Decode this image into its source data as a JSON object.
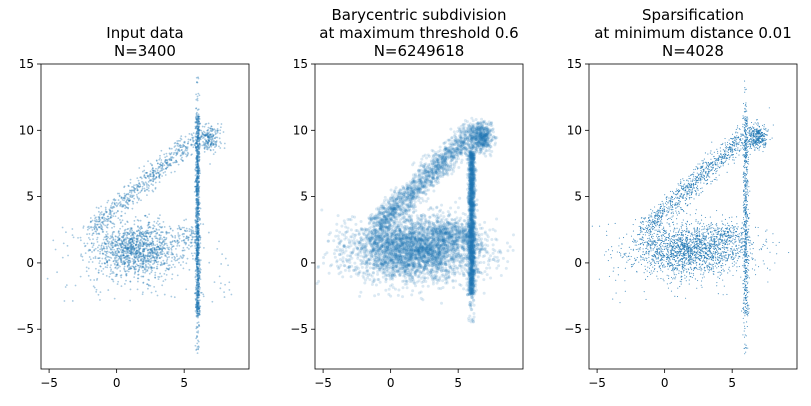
{
  "chart_data": [
    {
      "type": "scatter",
      "title": [
        "Input data",
        "N=3400"
      ],
      "xlim": [
        -5.6,
        9.8
      ],
      "ylim": [
        -8,
        15
      ],
      "xticks": [
        -5,
        0,
        5
      ],
      "yticks": [
        -5,
        0,
        5,
        10,
        15
      ],
      "grid": false,
      "color": "#1f77b4",
      "marker": "small dots, semi-transparent",
      "clusters": [
        {
          "shape": "ellipse",
          "center": [
            1.5,
            1.0
          ],
          "spread": [
            1.6,
            1.0
          ],
          "points": 1300
        },
        {
          "shape": "band",
          "from": [
            -2.0,
            2.4
          ],
          "to": [
            5.8,
            9.4
          ],
          "width": 0.45,
          "points": 600
        },
        {
          "shape": "band",
          "from": [
            4.6,
            2.2
          ],
          "to": [
            6.0,
            2.0
          ],
          "width": 0.35,
          "points": 80
        },
        {
          "shape": "vertical-line",
          "x": 6.0,
          "y_range": [
            -7.0,
            14.0
          ],
          "width": 0.08,
          "points": 1100
        },
        {
          "shape": "ellipse",
          "center": [
            6.9,
            9.4
          ],
          "spread": [
            0.4,
            0.5
          ],
          "points": 200
        },
        {
          "shape": "uniform-noise",
          "x_range": [
            -5.2,
            8.8
          ],
          "y_range": [
            -3,
            3
          ],
          "points": 120
        }
      ]
    },
    {
      "type": "scatter",
      "title": [
        "Barycentric subdivision",
        "at maximum threshold 0.6",
        "N=6249618"
      ],
      "xlim": [
        -5.6,
        9.8
      ],
      "ylim": [
        -8,
        15
      ],
      "xticks": [
        -5,
        0,
        5
      ],
      "yticks": [
        -5,
        0,
        5,
        10,
        15
      ],
      "grid": false,
      "color": "#1f77b4",
      "marker": "dense filled region",
      "clusters": [
        {
          "shape": "ellipse",
          "center": [
            1.8,
            1.0
          ],
          "spread": [
            2.5,
            1.2
          ],
          "points": 3500
        },
        {
          "shape": "band",
          "from": [
            -1.2,
            2.6
          ],
          "to": [
            5.8,
            9.6
          ],
          "width": 0.55,
          "points": 1400
        },
        {
          "shape": "band",
          "from": [
            3.5,
            2.4
          ],
          "to": [
            6.0,
            2.2
          ],
          "width": 0.4,
          "points": 250
        },
        {
          "shape": "vertical-line",
          "x": 6.0,
          "y_range": [
            -4.5,
            10.5
          ],
          "width": 0.12,
          "points": 1800
        },
        {
          "shape": "ellipse",
          "center": [
            6.7,
            9.5
          ],
          "spread": [
            0.45,
            0.55
          ],
          "points": 500
        }
      ]
    },
    {
      "type": "scatter",
      "title": [
        "Sparsification",
        "at minimum distance 0.01",
        "N=4028"
      ],
      "xlim": [
        -5.6,
        9.8
      ],
      "ylim": [
        -8,
        15
      ],
      "xticks": [
        -5,
        0,
        5
      ],
      "yticks": [
        -5,
        0,
        5,
        10,
        15
      ],
      "grid": false,
      "color": "#1f77b4",
      "marker": "tiny dots",
      "clusters": [
        {
          "shape": "ellipse",
          "center": [
            1.8,
            1.0
          ],
          "spread": [
            2.2,
            1.0
          ],
          "points": 1900
        },
        {
          "shape": "band",
          "from": [
            -1.5,
            2.5
          ],
          "to": [
            5.8,
            9.5
          ],
          "width": 0.5,
          "points": 900
        },
        {
          "shape": "band",
          "from": [
            3.8,
            2.3
          ],
          "to": [
            6.0,
            2.1
          ],
          "width": 0.4,
          "points": 120
        },
        {
          "shape": "vertical-line",
          "x": 6.0,
          "y_range": [
            -7.0,
            14.0
          ],
          "width": 0.1,
          "points": 600
        },
        {
          "shape": "ellipse",
          "center": [
            6.8,
            9.5
          ],
          "spread": [
            0.4,
            0.5
          ],
          "points": 350
        },
        {
          "shape": "uniform-noise",
          "x_range": [
            -5.0,
            8.5
          ],
          "y_range": [
            -3,
            3
          ],
          "points": 80
        }
      ]
    }
  ]
}
